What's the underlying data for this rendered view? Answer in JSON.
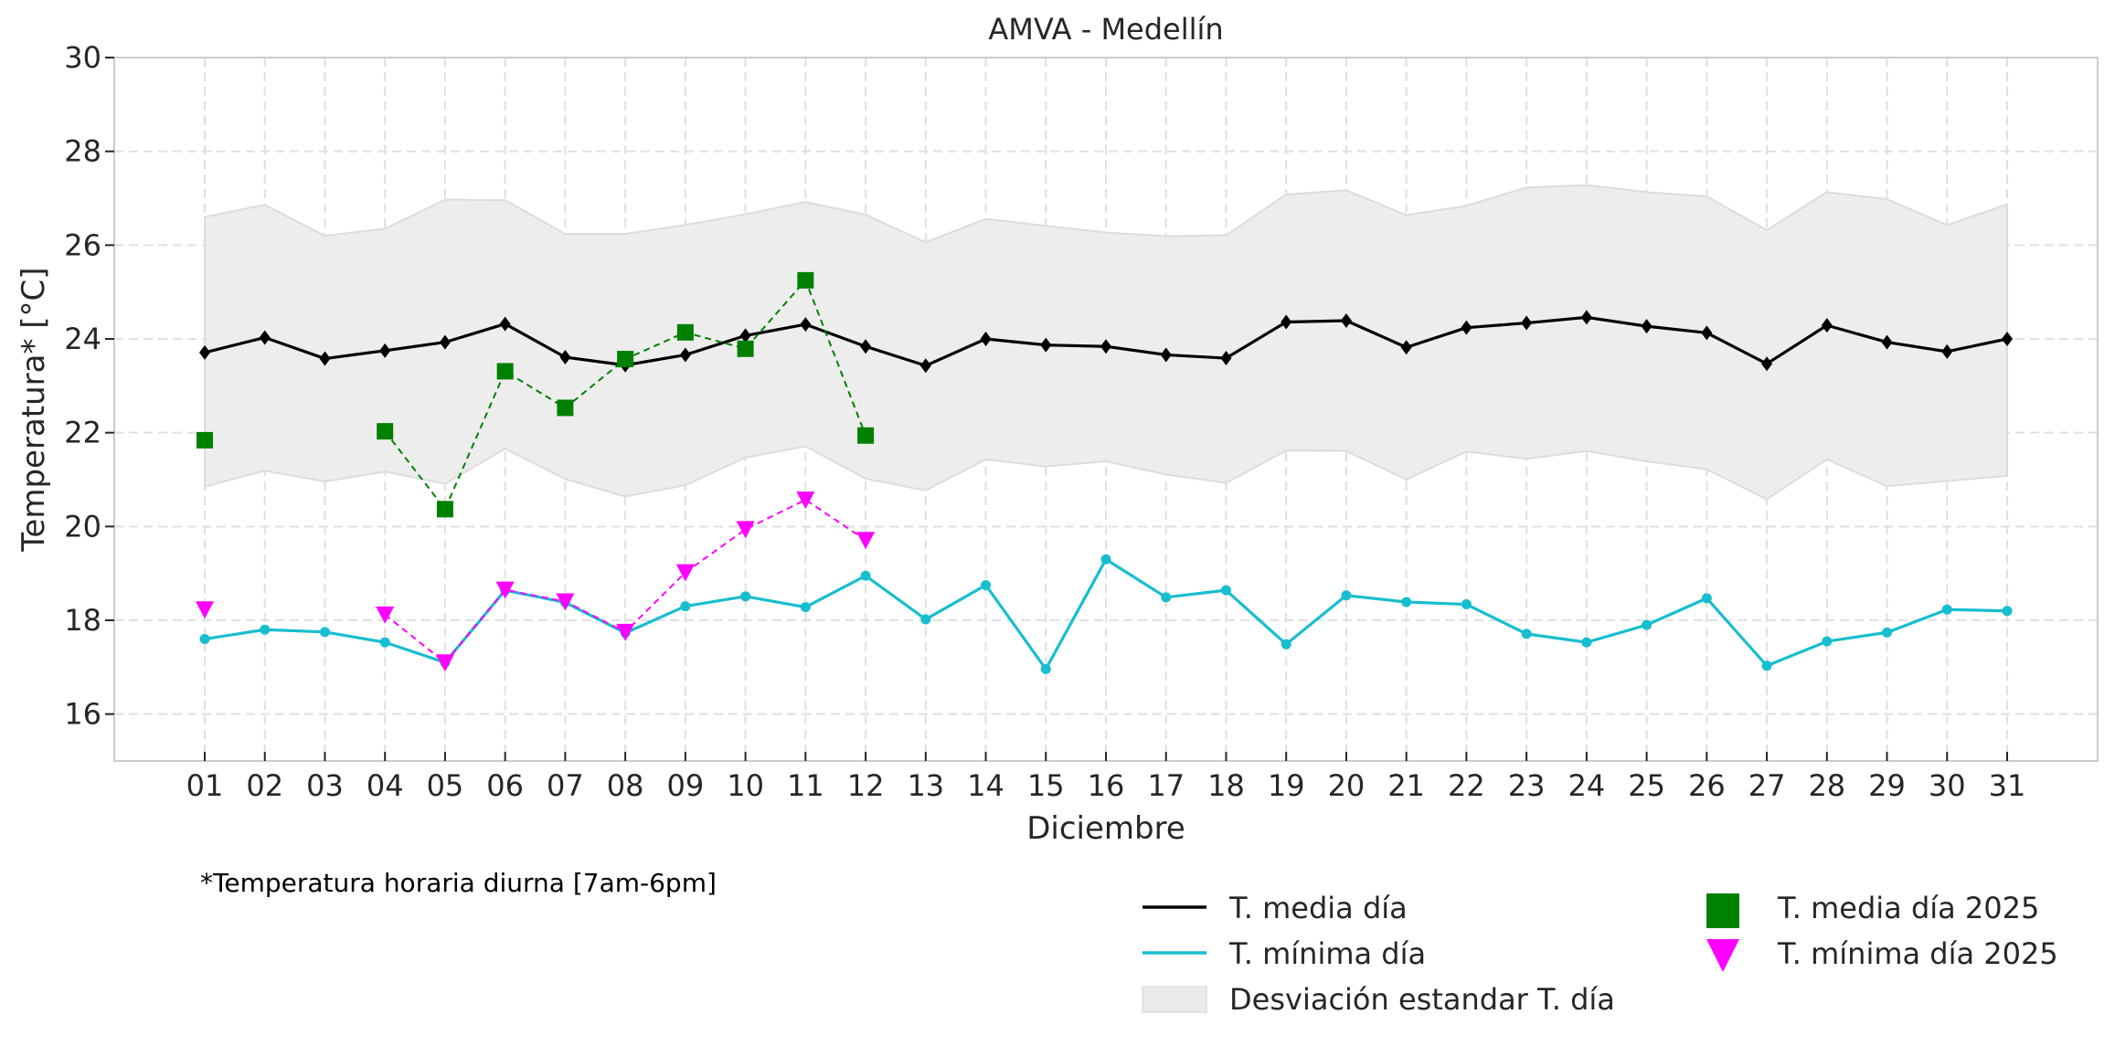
{
  "chart_data": {
    "type": "line",
    "title": "AMVA - Medellín",
    "xlabel": "Diciembre",
    "ylabel": "Temperatura* [°C]",
    "ylim": [
      15,
      30
    ],
    "yticks": [
      16,
      18,
      20,
      22,
      24,
      26,
      28,
      30
    ],
    "grid": true,
    "categories": [
      "01",
      "02",
      "03",
      "04",
      "05",
      "06",
      "07",
      "08",
      "09",
      "10",
      "11",
      "12",
      "13",
      "14",
      "15",
      "16",
      "17",
      "18",
      "19",
      "20",
      "21",
      "22",
      "23",
      "24",
      "25",
      "26",
      "27",
      "28",
      "29",
      "30",
      "31"
    ],
    "series": [
      {
        "name": "T. media día",
        "kind": "line",
        "color": "#000000",
        "marker": "diamond",
        "values": [
          23.71,
          24.03,
          23.58,
          23.75,
          23.93,
          24.32,
          23.61,
          23.44,
          23.66,
          24.07,
          24.31,
          23.84,
          23.43,
          24.0,
          23.87,
          23.84,
          23.66,
          23.59,
          24.36,
          24.39,
          23.82,
          24.24,
          24.34,
          24.46,
          24.27,
          24.13,
          23.47,
          24.29,
          23.93,
          23.73,
          24.0
        ]
      },
      {
        "name": "T. mínima día",
        "kind": "line",
        "color": "#17becf",
        "marker": "circle",
        "values": [
          17.6,
          17.8,
          17.75,
          17.53,
          17.1,
          18.64,
          18.38,
          17.73,
          18.3,
          18.51,
          18.28,
          18.95,
          18.02,
          18.75,
          16.96,
          19.3,
          18.49,
          18.64,
          17.49,
          18.53,
          18.39,
          18.34,
          17.71,
          17.53,
          17.9,
          18.47,
          17.03,
          17.55,
          17.74,
          18.23,
          18.2
        ]
      },
      {
        "name": "Desviación estandar T. día",
        "kind": "band",
        "color": "#e8e8e8",
        "upper": [
          26.6,
          26.86,
          26.2,
          26.35,
          26.97,
          26.96,
          26.24,
          26.24,
          26.43,
          26.66,
          26.92,
          26.65,
          26.06,
          26.56,
          26.41,
          26.27,
          26.19,
          26.21,
          27.08,
          27.17,
          26.64,
          26.84,
          27.23,
          27.28,
          27.13,
          27.04,
          26.32,
          27.13,
          26.98,
          26.43,
          26.87
        ],
        "lower": [
          20.85,
          21.19,
          20.96,
          21.17,
          20.91,
          21.66,
          21.01,
          20.64,
          20.88,
          21.47,
          21.71,
          21.02,
          20.77,
          21.43,
          21.28,
          21.39,
          21.11,
          20.93,
          21.62,
          21.61,
          21.0,
          21.6,
          21.44,
          21.61,
          21.39,
          21.22,
          20.58,
          21.43,
          20.86,
          20.97,
          21.08
        ]
      },
      {
        "name": "T. media día 2025",
        "kind": "scatter-dashed",
        "color": "#008000",
        "marker": "square",
        "values": [
          21.84,
          null,
          null,
          22.03,
          20.37,
          23.31,
          22.53,
          23.57,
          24.14,
          23.79,
          25.25,
          21.94,
          null,
          null,
          null,
          null,
          null,
          null,
          null,
          null,
          null,
          null,
          null,
          null,
          null,
          null,
          null,
          null,
          null,
          null,
          null
        ]
      },
      {
        "name": "T. mínima día 2025",
        "kind": "scatter-dashed",
        "color": "#ff00ff",
        "marker": "triangle-down",
        "values": [
          18.23,
          null,
          null,
          18.12,
          17.1,
          18.65,
          18.4,
          17.75,
          19.02,
          19.94,
          20.57,
          19.71,
          null,
          null,
          null,
          null,
          null,
          null,
          null,
          null,
          null,
          null,
          null,
          null,
          null,
          null,
          null,
          null,
          null,
          null,
          null
        ]
      }
    ],
    "legend": {
      "placement": "bottom-right",
      "entries": [
        {
          "label": "T. media día",
          "series": 0
        },
        {
          "label": "T. mínima día",
          "series": 1
        },
        {
          "label": "Desviación estandar T. día",
          "series": 2
        },
        {
          "label": "T. media día 2025",
          "series": 3
        },
        {
          "label": "T. mínima día 2025",
          "series": 4
        }
      ]
    },
    "annotation": "*Temperatura horaria diurna [7am-6pm]"
  }
}
